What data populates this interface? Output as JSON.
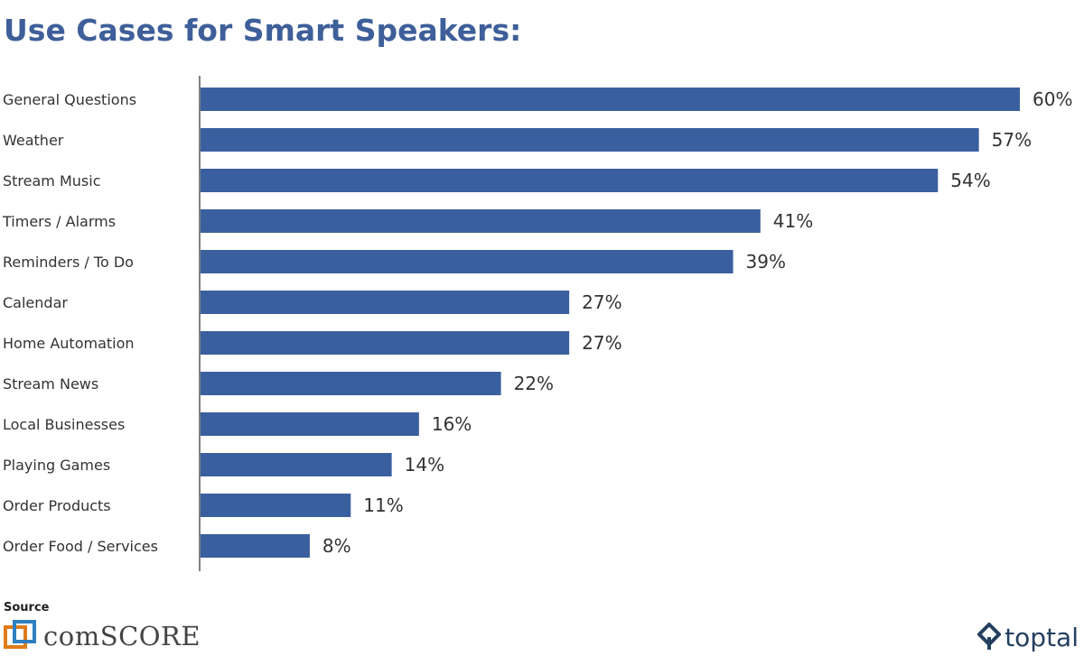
{
  "page": {
    "title": "Use Cases for Smart Speakers:",
    "source_label": "Source",
    "source_logo_text": "comSCORE",
    "brand_logo_text": "toptal"
  },
  "colors": {
    "bar": "#3a5f9e",
    "title": "#3e5f99",
    "label": "#333333",
    "axis": "#555555"
  },
  "chart_data": {
    "type": "bar",
    "orientation": "horizontal",
    "title": "Use Cases for Smart Speakers:",
    "categories": [
      "General Questions",
      "Weather",
      "Stream Music",
      "Timers / Alarms",
      "Reminders / To Do",
      "Calendar",
      "Home Automation",
      "Stream News",
      "Local Businesses",
      "Playing Games",
      "Order Products",
      "Order Food / Services"
    ],
    "values": [
      60,
      57,
      54,
      41,
      39,
      27,
      27,
      22,
      16,
      14,
      11,
      8
    ],
    "value_labels": [
      "60%",
      "57%",
      "54%",
      "41%",
      "39%",
      "27%",
      "27%",
      "22%",
      "16%",
      "14%",
      "11%",
      "8%"
    ],
    "unit": "%",
    "xlim": [
      0,
      60
    ],
    "grid": false,
    "legend": "none"
  }
}
